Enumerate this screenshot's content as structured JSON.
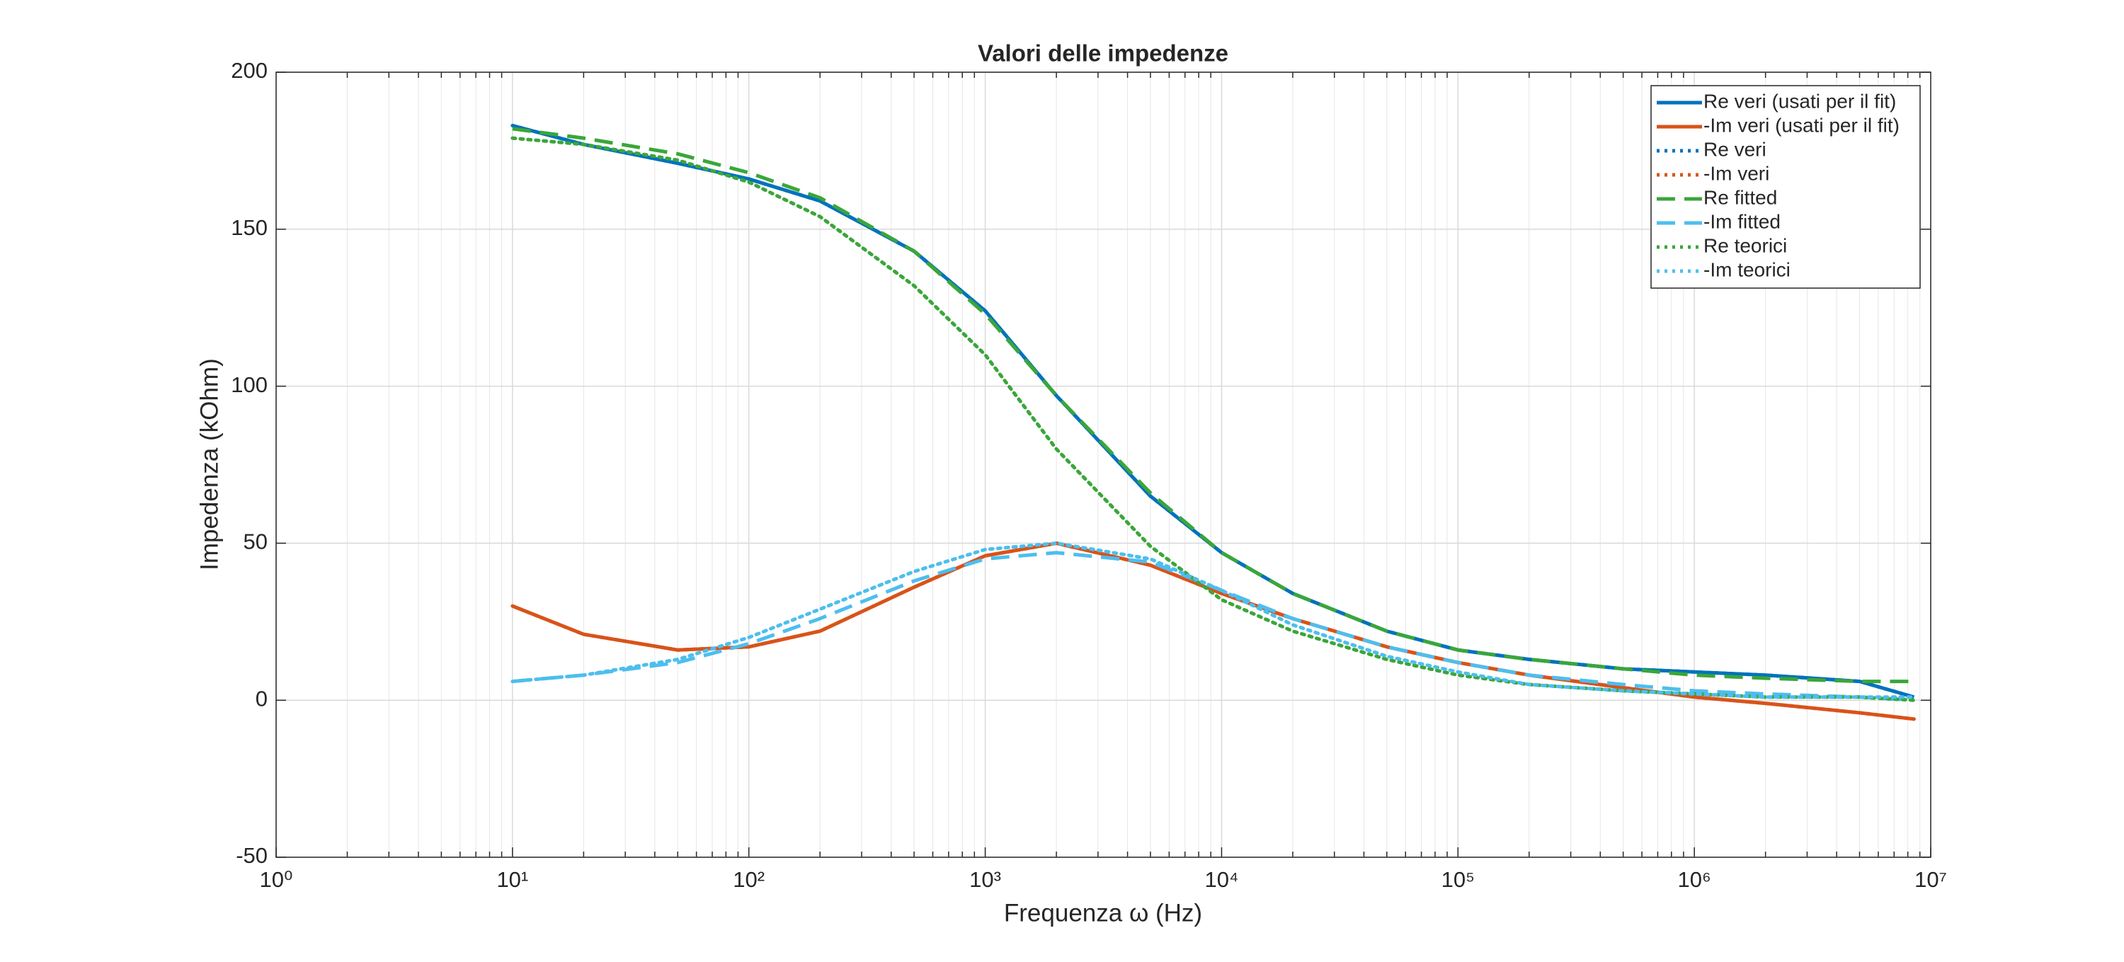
{
  "chart_data": {
    "type": "line",
    "title": "Valori delle impedenze",
    "xlabel": "Frequenza  ω  (Hz)",
    "ylabel": "Impedenza (kOhm)",
    "xscale": "log",
    "xlim": [
      1,
      10000000
    ],
    "xticks": [
      {
        "value": 1,
        "label": "10⁰"
      },
      {
        "value": 10,
        "label": "10¹"
      },
      {
        "value": 100,
        "label": "10²"
      },
      {
        "value": 1000,
        "label": "10³"
      },
      {
        "value": 10000,
        "label": "10⁴"
      },
      {
        "value": 100000,
        "label": "10⁵"
      },
      {
        "value": 1000000,
        "label": "10⁶"
      },
      {
        "value": 10000000,
        "label": "10⁷"
      }
    ],
    "ylim": [
      -50,
      200
    ],
    "yticks": [
      -50,
      0,
      50,
      100,
      150,
      200
    ],
    "grid": true,
    "minor_grid": true,
    "legend": "northeast",
    "x": [
      10,
      20,
      50,
      100,
      200,
      500,
      1000,
      2000,
      5000,
      10000,
      20000,
      50000,
      100000,
      200000,
      500000,
      1000000,
      2000000,
      5000000,
      8500000
    ],
    "series": [
      {
        "name": "Re veri (usati per il fit)",
        "color": "#0072bd",
        "linestyle": "solid",
        "values": [
          183,
          177,
          171,
          166,
          159,
          143,
          124,
          97,
          65,
          47,
          34,
          22,
          16,
          13,
          10,
          9,
          8,
          6,
          1
        ]
      },
      {
        "name": "-Im veri (usati per il fit)",
        "color": "#d95319",
        "linestyle": "solid",
        "values": [
          30,
          21,
          16,
          17,
          22,
          36,
          46,
          50,
          43,
          34,
          26,
          17,
          12,
          8,
          4,
          1,
          -1,
          -4,
          -6
        ]
      },
      {
        "name": "Re veri",
        "color": "#0072bd",
        "linestyle": "dotted",
        "values": [
          183,
          177,
          171,
          166,
          159,
          143,
          124,
          97,
          65,
          47,
          34,
          22,
          16,
          13,
          10,
          9,
          8,
          6,
          1
        ]
      },
      {
        "name": "-Im veri",
        "color": "#d95319",
        "linestyle": "dotted",
        "values": [
          30,
          21,
          16,
          17,
          22,
          36,
          46,
          50,
          43,
          34,
          26,
          17,
          12,
          8,
          4,
          1,
          -1,
          -4,
          -6
        ]
      },
      {
        "name": "Re fitted",
        "color": "#3aa63a",
        "linestyle": "dashed",
        "values": [
          182,
          179,
          174,
          168,
          160,
          143,
          123,
          97,
          66,
          47,
          34,
          22,
          16,
          13,
          10,
          8,
          7,
          6,
          6
        ]
      },
      {
        "name": "-Im fitted",
        "color": "#4dbeee",
        "linestyle": "dashed",
        "values": [
          6,
          8,
          12,
          18,
          26,
          38,
          45,
          47,
          44,
          35,
          26,
          17,
          12,
          8,
          5,
          3,
          2,
          1,
          0
        ]
      },
      {
        "name": "Re teorici",
        "color": "#3aa63a",
        "linestyle": "dotted",
        "values": [
          179,
          177,
          172,
          165,
          154,
          132,
          110,
          80,
          49,
          32,
          22,
          13,
          8,
          5,
          3,
          2,
          1,
          1,
          0
        ]
      },
      {
        "name": "-Im teorici",
        "color": "#4dbeee",
        "linestyle": "dotted",
        "values": [
          6,
          8,
          13,
          20,
          29,
          41,
          48,
          50,
          45,
          35,
          24,
          14,
          9,
          5,
          3,
          2,
          1,
          1,
          1
        ]
      }
    ]
  }
}
